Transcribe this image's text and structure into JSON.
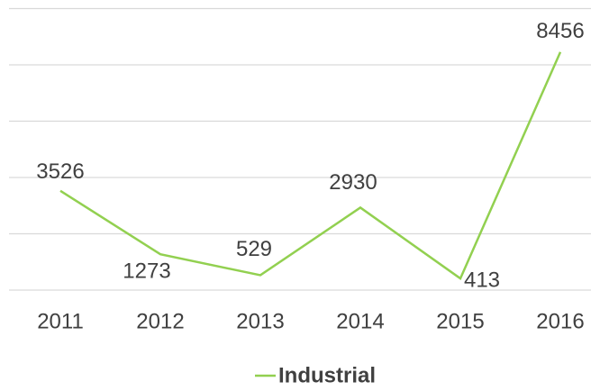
{
  "chart_data": {
    "type": "line",
    "x": [
      "2011",
      "2012",
      "2013",
      "2014",
      "2015",
      "2016"
    ],
    "series": [
      {
        "name": "Industrial",
        "color": "#92d050",
        "values": [
          3526,
          1273,
          529,
          2930,
          413,
          8456
        ]
      }
    ],
    "ylim": [
      0,
      10000
    ],
    "yticks": [
      0,
      2000,
      4000,
      6000,
      8000,
      10000
    ],
    "grid": true,
    "legend": "bottom"
  }
}
